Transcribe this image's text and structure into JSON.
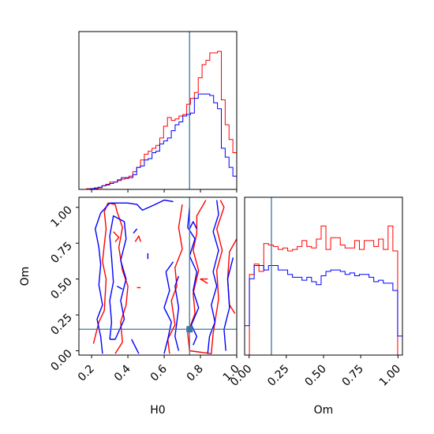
{
  "chart_data": [
    {
      "type": "step-histogram",
      "panel": "H0 marginal",
      "xlim": [
        0.13,
        1.0
      ],
      "ylim": [
        0,
        1
      ],
      "truth_x": 0.74,
      "series": [
        {
          "color": "#ff0000",
          "values": [
            0.0,
            0.0,
            0.005,
            0.005,
            0.005,
            0.01,
            0.025,
            0.035,
            0.05,
            0.05,
            0.06,
            0.07,
            0.075,
            0.09,
            0.12,
            0.15,
            0.2,
            0.24,
            0.26,
            0.28,
            0.3,
            0.35,
            0.43,
            0.49,
            0.47,
            0.48,
            0.5,
            0.51,
            0.58,
            0.62,
            0.66,
            0.76,
            0.85,
            0.88,
            0.93,
            0.93,
            0.94,
            0.61,
            0.44,
            0.34,
            0.25
          ]
        },
        {
          "color": "#0000ff",
          "values": [
            0.0,
            0.0,
            0.0,
            0.005,
            0.01,
            0.015,
            0.025,
            0.03,
            0.04,
            0.05,
            0.065,
            0.08,
            0.08,
            0.08,
            0.1,
            0.15,
            0.16,
            0.2,
            0.21,
            0.25,
            0.26,
            0.31,
            0.33,
            0.35,
            0.4,
            0.44,
            0.46,
            0.5,
            0.51,
            0.52,
            0.62,
            0.65,
            0.65,
            0.65,
            0.64,
            0.59,
            0.55,
            0.28,
            0.22,
            0.15,
            0.09
          ]
        }
      ]
    },
    {
      "type": "step-histogram",
      "panel": "Om marginal",
      "xlim": [
        -0.03,
        1.03
      ],
      "ylim": [
        0,
        1
      ],
      "truth_x": 0.15,
      "xticks": [
        "0.00",
        "0.25",
        "0.50",
        "0.75",
        "1.00"
      ],
      "xticks_values": [
        0.0,
        0.25,
        0.5,
        0.75,
        1.0
      ],
      "xlabel": "Om",
      "series": [
        {
          "color": "#ff0000",
          "values": [
            0.0,
            0.55,
            0.62,
            0.57,
            0.76,
            0.75,
            0.74,
            0.72,
            0.73,
            0.71,
            0.72,
            0.74,
            0.78,
            0.74,
            0.73,
            0.79,
            0.88,
            0.72,
            0.8,
            0.8,
            0.75,
            0.73,
            0.73,
            0.78,
            0.72,
            0.78,
            0.78,
            0.74,
            0.79,
            0.72,
            0.88,
            0.71,
            0.0
          ]
        },
        {
          "color": "#0000ff",
          "values": [
            0.2,
            0.52,
            0.61,
            0.61,
            0.58,
            0.61,
            0.61,
            0.58,
            0.58,
            0.55,
            0.53,
            0.53,
            0.51,
            0.53,
            0.5,
            0.48,
            0.54,
            0.57,
            0.58,
            0.58,
            0.57,
            0.55,
            0.56,
            0.54,
            0.55,
            0.55,
            0.53,
            0.5,
            0.51,
            0.49,
            0.49,
            0.44,
            0.13
          ]
        }
      ]
    },
    {
      "type": "contour",
      "panel": "H0 vs Om joint",
      "xlim": [
        0.13,
        1.0
      ],
      "ylim": [
        -0.03,
        1.07
      ],
      "xticks": [
        "0.2",
        "0.4",
        "0.6",
        "0.8",
        "1.0"
      ],
      "xticks_values": [
        0.2,
        0.4,
        0.6,
        0.8,
        1.0
      ],
      "yticks": [
        "0.00",
        "0.25",
        "0.50",
        "0.75",
        "1.00"
      ],
      "yticks_values": [
        0.0,
        0.25,
        0.5,
        0.75,
        1.0
      ],
      "xlabel": "H0",
      "ylabel": "Om",
      "truth_x": 0.74,
      "truth_y": 0.15,
      "red_contours": [
        [
          [
            0.21,
            0.05
          ],
          [
            0.24,
            0.2
          ],
          [
            0.27,
            0.28
          ],
          [
            0.28,
            0.5
          ],
          [
            0.26,
            0.62
          ],
          [
            0.27,
            0.74
          ],
          [
            0.28,
            0.85
          ],
          [
            0.27,
            0.97
          ],
          [
            0.29,
            1.03
          ],
          [
            0.33,
            1.02
          ],
          [
            0.34,
            0.97
          ],
          [
            0.37,
            0.86
          ],
          [
            0.35,
            0.72
          ],
          [
            0.37,
            0.56
          ],
          [
            0.4,
            0.45
          ],
          [
            0.39,
            0.32
          ],
          [
            0.36,
            0.2
          ],
          [
            0.37,
            0.06
          ],
          [
            0.33,
            -0.02
          ]
        ],
        [
          [
            0.63,
            -0.02
          ],
          [
            0.62,
            0.08
          ],
          [
            0.66,
            0.18
          ],
          [
            0.64,
            0.35
          ],
          [
            0.67,
            0.45
          ],
          [
            0.66,
            0.58
          ],
          [
            0.7,
            0.71
          ],
          [
            0.68,
            0.86
          ],
          [
            0.7,
            1.02
          ]
        ],
        [
          [
            0.83,
            1.05
          ],
          [
            0.78,
            0.94
          ],
          [
            0.78,
            0.82
          ],
          [
            0.76,
            0.7
          ],
          [
            0.79,
            0.56
          ],
          [
            0.76,
            0.4
          ],
          [
            0.77,
            0.26
          ],
          [
            0.73,
            0.12
          ],
          [
            0.74,
            0.0
          ],
          [
            0.86,
            -0.02
          ],
          [
            0.87,
            0.12
          ],
          [
            0.9,
            0.36
          ],
          [
            0.89,
            0.56
          ],
          [
            0.92,
            0.7
          ],
          [
            0.89,
            0.85
          ],
          [
            0.93,
            1.0
          ],
          [
            0.91,
            1.05
          ]
        ],
        [
          [
            1.0,
            0.78
          ],
          [
            0.96,
            0.69
          ],
          [
            0.95,
            0.5
          ],
          [
            0.96,
            0.32
          ],
          [
            0.99,
            0.26
          ]
        ],
        [
          [
            0.32,
            0.83
          ],
          [
            0.35,
            0.79
          ],
          [
            0.33,
            0.76
          ]
        ],
        [
          [
            0.44,
            0.76
          ],
          [
            0.46,
            0.8
          ],
          [
            0.47,
            0.76
          ]
        ],
        [
          [
            0.45,
            0.44
          ],
          [
            0.47,
            0.44
          ]
        ],
        [
          [
            0.84,
            0.47
          ],
          [
            0.8,
            0.5
          ],
          [
            0.84,
            0.5
          ]
        ]
      ],
      "blue_contours": [
        [
          [
            0.26,
            -0.02
          ],
          [
            0.25,
            0.1
          ],
          [
            0.23,
            0.22
          ],
          [
            0.26,
            0.32
          ],
          [
            0.24,
            0.46
          ],
          [
            0.25,
            0.6
          ],
          [
            0.24,
            0.72
          ],
          [
            0.22,
            0.85
          ],
          [
            0.25,
            0.96
          ],
          [
            0.3,
            1.03
          ],
          [
            0.4,
            1.03
          ],
          [
            0.45,
            1.02
          ],
          [
            0.48,
            0.98
          ],
          [
            0.55,
            1.02
          ],
          [
            0.6,
            1.05
          ],
          [
            0.65,
            1.04
          ]
        ],
        [
          [
            0.3,
            0.08
          ],
          [
            0.31,
            0.2
          ],
          [
            0.3,
            0.35
          ],
          [
            0.32,
            0.48
          ],
          [
            0.31,
            0.65
          ],
          [
            0.3,
            0.8
          ],
          [
            0.32,
            0.94
          ],
          [
            0.38,
            0.9
          ],
          [
            0.39,
            0.78
          ],
          [
            0.36,
            0.63
          ],
          [
            0.39,
            0.5
          ],
          [
            0.36,
            0.35
          ],
          [
            0.38,
            0.22
          ],
          [
            0.33,
            0.08
          ],
          [
            0.3,
            0.08
          ]
        ],
        [
          [
            0.46,
            -0.02
          ],
          [
            0.42,
            0.08
          ]
        ],
        [
          [
            0.6,
            -0.02
          ],
          [
            0.62,
            0.08
          ],
          [
            0.64,
            0.2
          ],
          [
            0.6,
            0.3
          ],
          [
            0.63,
            0.42
          ],
          [
            0.61,
            0.55
          ],
          [
            0.65,
            0.62
          ]
        ],
        [
          [
            0.68,
            0.0
          ],
          [
            0.66,
            0.1
          ],
          [
            0.68,
            0.3
          ],
          [
            0.66,
            0.45
          ],
          [
            0.68,
            0.52
          ]
        ],
        [
          [
            0.74,
            1.0
          ],
          [
            0.73,
            0.86
          ],
          [
            0.77,
            0.78
          ],
          [
            0.74,
            0.66
          ],
          [
            0.78,
            0.55
          ],
          [
            0.76,
            0.42
          ],
          [
            0.79,
            0.3
          ],
          [
            0.75,
            0.18
          ],
          [
            0.78,
            0.1
          ],
          [
            0.76,
            0.04
          ]
        ],
        [
          [
            0.84,
            -0.02
          ],
          [
            0.85,
            0.1
          ],
          [
            0.88,
            0.2
          ],
          [
            0.86,
            0.32
          ],
          [
            0.89,
            0.45
          ],
          [
            0.87,
            0.55
          ],
          [
            0.9,
            0.7
          ],
          [
            0.87,
            0.83
          ],
          [
            0.9,
            0.95
          ],
          [
            0.89,
            1.05
          ]
        ],
        [
          [
            0.94,
            0.0
          ],
          [
            0.93,
            0.15
          ],
          [
            0.96,
            0.3
          ],
          [
            0.95,
            0.5
          ],
          [
            0.98,
            0.65
          ]
        ],
        [
          [
            0.74,
            0.85
          ],
          [
            0.76,
            0.9
          ],
          [
            0.78,
            0.85
          ]
        ],
        [
          [
            0.43,
            0.82
          ],
          [
            0.45,
            0.85
          ]
        ],
        [
          [
            0.51,
            0.68
          ],
          [
            0.51,
            0.64
          ]
        ],
        [
          [
            0.34,
            0.45
          ],
          [
            0.37,
            0.43
          ]
        ]
      ]
    }
  ]
}
